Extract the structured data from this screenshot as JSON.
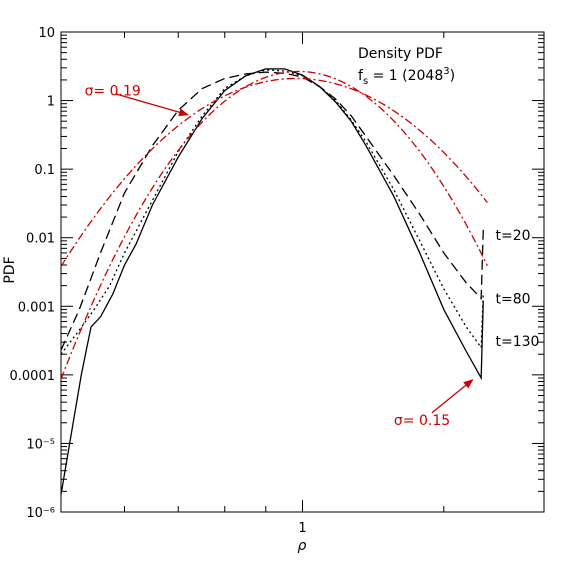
{
  "chart_data": {
    "type": "line",
    "title": "Density PDF",
    "subtitle_prefix": "f",
    "subtitle_sub": "s",
    "subtitle_suffix": " = 1 (2048",
    "subtitle_sup": "3",
    "subtitle_close": ")",
    "xlabel": "ρ",
    "ylabel": "PDF",
    "x_scale": "log",
    "y_scale": "log",
    "xlim": [
      0.5,
      2.0
    ],
    "ylim": [
      1e-06,
      10
    ],
    "x_ticks": [
      {
        "value": 1,
        "label": "1"
      }
    ],
    "y_ticks": [
      {
        "value": 10,
        "label": "10"
      },
      {
        "value": 1,
        "label": "1"
      },
      {
        "value": 0.1,
        "label": "0.1"
      },
      {
        "value": 0.01,
        "label": "0.01"
      },
      {
        "value": 0.001,
        "label": "0.001"
      },
      {
        "value": 0.0001,
        "label": "0.0001"
      },
      {
        "value": 1e-05,
        "label": "10⁻⁵"
      },
      {
        "value": 1e-06,
        "label": "10⁻⁶"
      }
    ],
    "series": [
      {
        "name": "t=20",
        "style": "dashed",
        "color": "#000000",
        "points": [
          [
            0.5,
            0.00023
          ],
          [
            0.527,
            0.0009
          ],
          [
            0.56,
            0.006
          ],
          [
            0.6,
            0.045
          ],
          [
            0.65,
            0.22
          ],
          [
            0.7,
            0.72
          ],
          [
            0.75,
            1.5
          ],
          [
            0.8,
            2.1
          ],
          [
            0.85,
            2.45
          ],
          [
            0.9,
            2.6
          ],
          [
            0.95,
            2.5
          ],
          [
            1.0,
            2.2
          ],
          [
            1.05,
            1.6
          ],
          [
            1.1,
            1.05
          ],
          [
            1.15,
            0.6
          ],
          [
            1.2,
            0.3
          ],
          [
            1.3,
            0.08
          ],
          [
            1.4,
            0.022
          ],
          [
            1.5,
            0.006
          ],
          [
            1.6,
            0.0022
          ],
          [
            1.67,
            0.0013
          ],
          [
            1.68,
            0.013
          ]
        ]
      },
      {
        "name": "t=80",
        "style": "dotted",
        "color": "#000000",
        "points": [
          [
            0.5,
            0.0002
          ],
          [
            0.527,
            0.00045
          ],
          [
            0.55,
            0.0009
          ],
          [
            0.575,
            0.002
          ],
          [
            0.6,
            0.006
          ],
          [
            0.65,
            0.035
          ],
          [
            0.7,
            0.18
          ],
          [
            0.75,
            0.6
          ],
          [
            0.8,
            1.5
          ],
          [
            0.85,
            2.3
          ],
          [
            0.9,
            2.8
          ],
          [
            0.95,
            2.7
          ],
          [
            1.0,
            2.3
          ],
          [
            1.05,
            1.6
          ],
          [
            1.1,
            1.0
          ],
          [
            1.15,
            0.52
          ],
          [
            1.2,
            0.25
          ],
          [
            1.3,
            0.05
          ],
          [
            1.4,
            0.009
          ],
          [
            1.5,
            0.0018
          ],
          [
            1.6,
            0.0005
          ],
          [
            1.67,
            0.00025
          ],
          [
            1.68,
            0.0016
          ]
        ]
      },
      {
        "name": "t=130",
        "style": "solid",
        "color": "#000000",
        "points": [
          [
            0.5,
            1.8e-06
          ],
          [
            0.53,
            0.0001
          ],
          [
            0.545,
            0.0005
          ],
          [
            0.56,
            0.0007
          ],
          [
            0.58,
            0.0015
          ],
          [
            0.6,
            0.004
          ],
          [
            0.62,
            0.008
          ],
          [
            0.65,
            0.03
          ],
          [
            0.7,
            0.15
          ],
          [
            0.75,
            0.55
          ],
          [
            0.8,
            1.4
          ],
          [
            0.85,
            2.3
          ],
          [
            0.9,
            2.9
          ],
          [
            0.95,
            2.9
          ],
          [
            1.0,
            2.35
          ],
          [
            1.05,
            1.6
          ],
          [
            1.1,
            0.95
          ],
          [
            1.15,
            0.5
          ],
          [
            1.2,
            0.22
          ],
          [
            1.3,
            0.04
          ],
          [
            1.4,
            0.006
          ],
          [
            1.5,
            0.0009
          ],
          [
            1.6,
            0.00022
          ],
          [
            1.67,
            9e-05
          ],
          [
            1.68,
            0.0012
          ]
        ]
      },
      {
        "name": "σ= 0.19",
        "style": "dashdot",
        "color": "#cc0000",
        "mu": -0.01805,
        "sigma": 0.19
      },
      {
        "name": "σ= 0.15",
        "style": "dashdot",
        "color": "#cc0000",
        "mu": -0.01125,
        "sigma": 0.15
      }
    ],
    "annotations": [
      {
        "text": "t=20",
        "x": 1.74,
        "y": 0.011,
        "color": "#000000"
      },
      {
        "text": "t=80",
        "x": 1.74,
        "y": 0.0013,
        "color": "#000000"
      },
      {
        "text": "t=130",
        "x": 1.74,
        "y": 0.00031,
        "color": "#000000"
      }
    ],
    "sigma_labels": [
      {
        "text": "σ= 0.19",
        "x": 0.535,
        "y": 1.4,
        "color": "#cc0000",
        "arrow_from": [
          0.585,
          1.25
        ],
        "arrow_to": [
          0.72,
          0.62
        ]
      },
      {
        "text": "σ= 0.15",
        "x": 1.3,
        "y": 2.2e-05,
        "color": "#cc0000",
        "arrow_from": [
          1.45,
          2.8e-05
        ],
        "arrow_to": [
          1.63,
          8.5e-05
        ]
      }
    ]
  }
}
